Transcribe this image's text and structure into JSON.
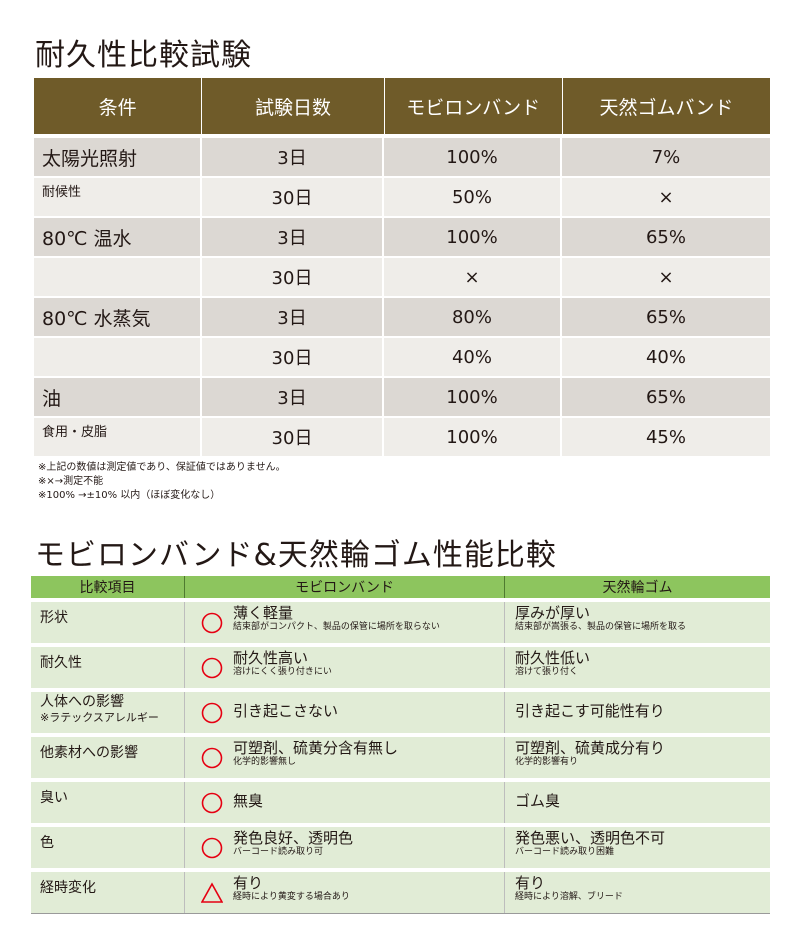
{
  "table1": {
    "title": "耐久性比較試験",
    "headers": [
      "条件",
      "試験日数",
      "モビロンバンド",
      "天然ゴムバンド"
    ],
    "rows": [
      {
        "condition": "太陽光照射",
        "days": "3日",
        "mobilon": "100%",
        "rubber": "7%"
      },
      {
        "condition": "耐候性",
        "days": "30日",
        "mobilon": "50%",
        "rubber": "×"
      },
      {
        "condition": "80℃ 温水",
        "days": "3日",
        "mobilon": "100%",
        "rubber": "65%"
      },
      {
        "condition": "",
        "days": "30日",
        "mobilon": "×",
        "rubber": "×"
      },
      {
        "condition": "80℃ 水蒸気",
        "days": "3日",
        "mobilon": "80%",
        "rubber": "65%"
      },
      {
        "condition": "",
        "days": "30日",
        "mobilon": "40%",
        "rubber": "40%"
      },
      {
        "condition": "油",
        "days": "3日",
        "mobilon": "100%",
        "rubber": "65%"
      },
      {
        "condition": "食用・皮脂",
        "days": "30日",
        "mobilon": "100%",
        "rubber": "45%"
      }
    ],
    "notes": [
      "※上記の数値は測定値であり、保証値ではありません。",
      "※×→測定不能",
      "※100% →±10% 以内（ほぼ変化なし）"
    ]
  },
  "table2": {
    "title": "モビロンバンド&天然輪ゴム性能比較",
    "headers": [
      "比較項目",
      "モビロンバンド",
      "天然輪ゴム"
    ],
    "rows": [
      {
        "item": "形状",
        "item_sub": "",
        "mark": "circle",
        "mobilon": "薄く軽量",
        "mobilon_sub": "結束部がコンパクト、製品の保管に場所を取らない",
        "rubber": "厚みが厚い",
        "rubber_sub": "結束部が嵩張る、製品の保管に場所を取る"
      },
      {
        "item": "耐久性",
        "item_sub": "",
        "mark": "circle",
        "mobilon": "耐久性高い",
        "mobilon_sub": "溶けにくく張り付きにい",
        "rubber": "耐久性低い",
        "rubber_sub": "溶けて張り付く"
      },
      {
        "item": "人体への影響",
        "item_sub": "※ラテックスアレルギー",
        "mark": "circle",
        "mobilon": "引き起こさない",
        "mobilon_sub": "",
        "rubber": "引き起こす可能性有り",
        "rubber_sub": ""
      },
      {
        "item": "他素材への影響",
        "item_sub": "",
        "mark": "circle",
        "mobilon": "可塑剤、硫黄分含有無し",
        "mobilon_sub": "化学的影響無し",
        "rubber": "可塑剤、硫黄成分有り",
        "rubber_sub": "化学的影響有り"
      },
      {
        "item": "臭い",
        "item_sub": "",
        "mark": "circle",
        "mobilon": "無臭",
        "mobilon_sub": "",
        "rubber": "ゴム臭",
        "rubber_sub": ""
      },
      {
        "item": "色",
        "item_sub": "",
        "mark": "circle",
        "mobilon": "発色良好、透明色",
        "mobilon_sub": "バーコード読み取り可",
        "rubber": "発色悪い、透明色不可",
        "rubber_sub": "バーコード読み取り困難"
      },
      {
        "item": "経時変化",
        "item_sub": "",
        "mark": "triangle",
        "mobilon": "有り",
        "mobilon_sub": "経時により黄変する場合あり",
        "rubber": "有り",
        "rubber_sub": "経時により溶解、ブリード"
      }
    ]
  },
  "colors": {
    "header_brown": "#6f5b29",
    "row_dark": "#dcd8d3",
    "row_light": "#efede9",
    "header_green": "#8dc55e",
    "row_green": "#e1ecd6",
    "mark_red": "#e60012"
  }
}
